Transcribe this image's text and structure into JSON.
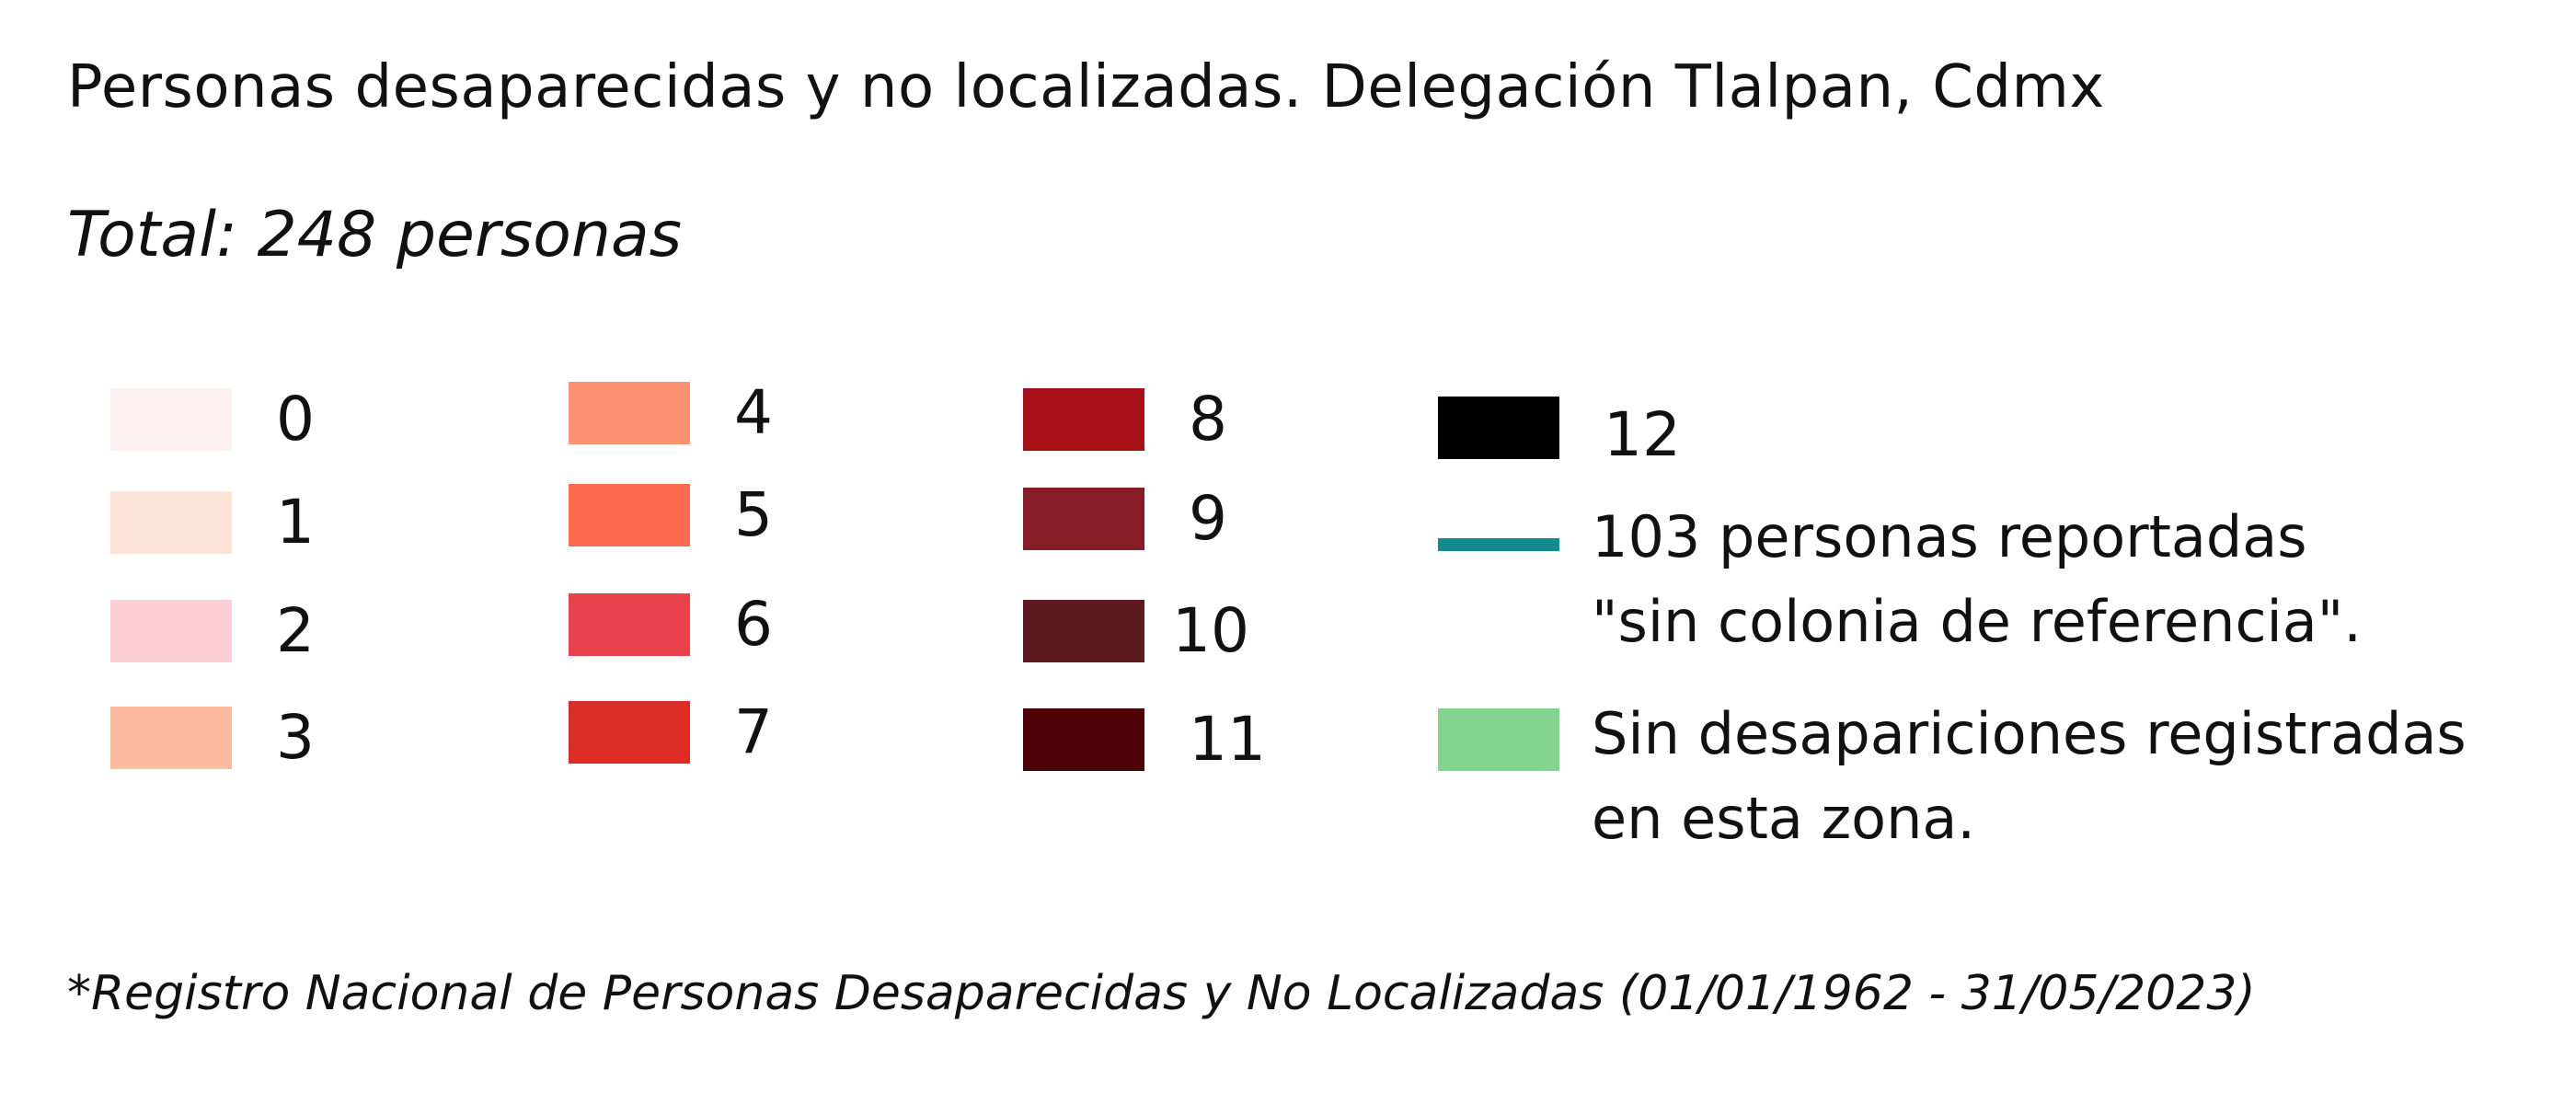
{
  "title": "Personas desaparecidas y no localizadas. Delegación Tlalpan, Cdmx",
  "subtitle": "Total: 248 personas",
  "legend": {
    "bins": [
      {
        "label": "0",
        "color": "#FDF0F0"
      },
      {
        "label": "1",
        "color": "#FDE2D8"
      },
      {
        "label": "2",
        "color": "#FDCED6"
      },
      {
        "label": "3",
        "color": "#FCBBA1"
      },
      {
        "label": "4",
        "color": "#FC9272"
      },
      {
        "label": "5",
        "color": "#FB6A4A"
      },
      {
        "label": "6",
        "color": "#E8414B"
      },
      {
        "label": "7",
        "color": "#DE2D26"
      },
      {
        "label": "8",
        "color": "#A50F15"
      },
      {
        "label": "9",
        "color": "#851C26"
      },
      {
        "label": "10",
        "color": "#5C1A1E"
      },
      {
        "label": "11",
        "color": "#4D0208"
      },
      {
        "label": "12",
        "color": "#000000"
      }
    ],
    "sin_colonia": {
      "line1": "103 personas reportadas",
      "line2": "\"sin colonia de referencia\".",
      "color": "#148A8F"
    },
    "sin_desapariciones": {
      "line1": "Sin desapariciones registradas",
      "line2": "en esta zona.",
      "color": "#82D38E"
    }
  },
  "source_note": "*Registro Nacional de Personas Desaparecidas y No Localizadas (01/01/1962 - 31/05/2023)"
}
